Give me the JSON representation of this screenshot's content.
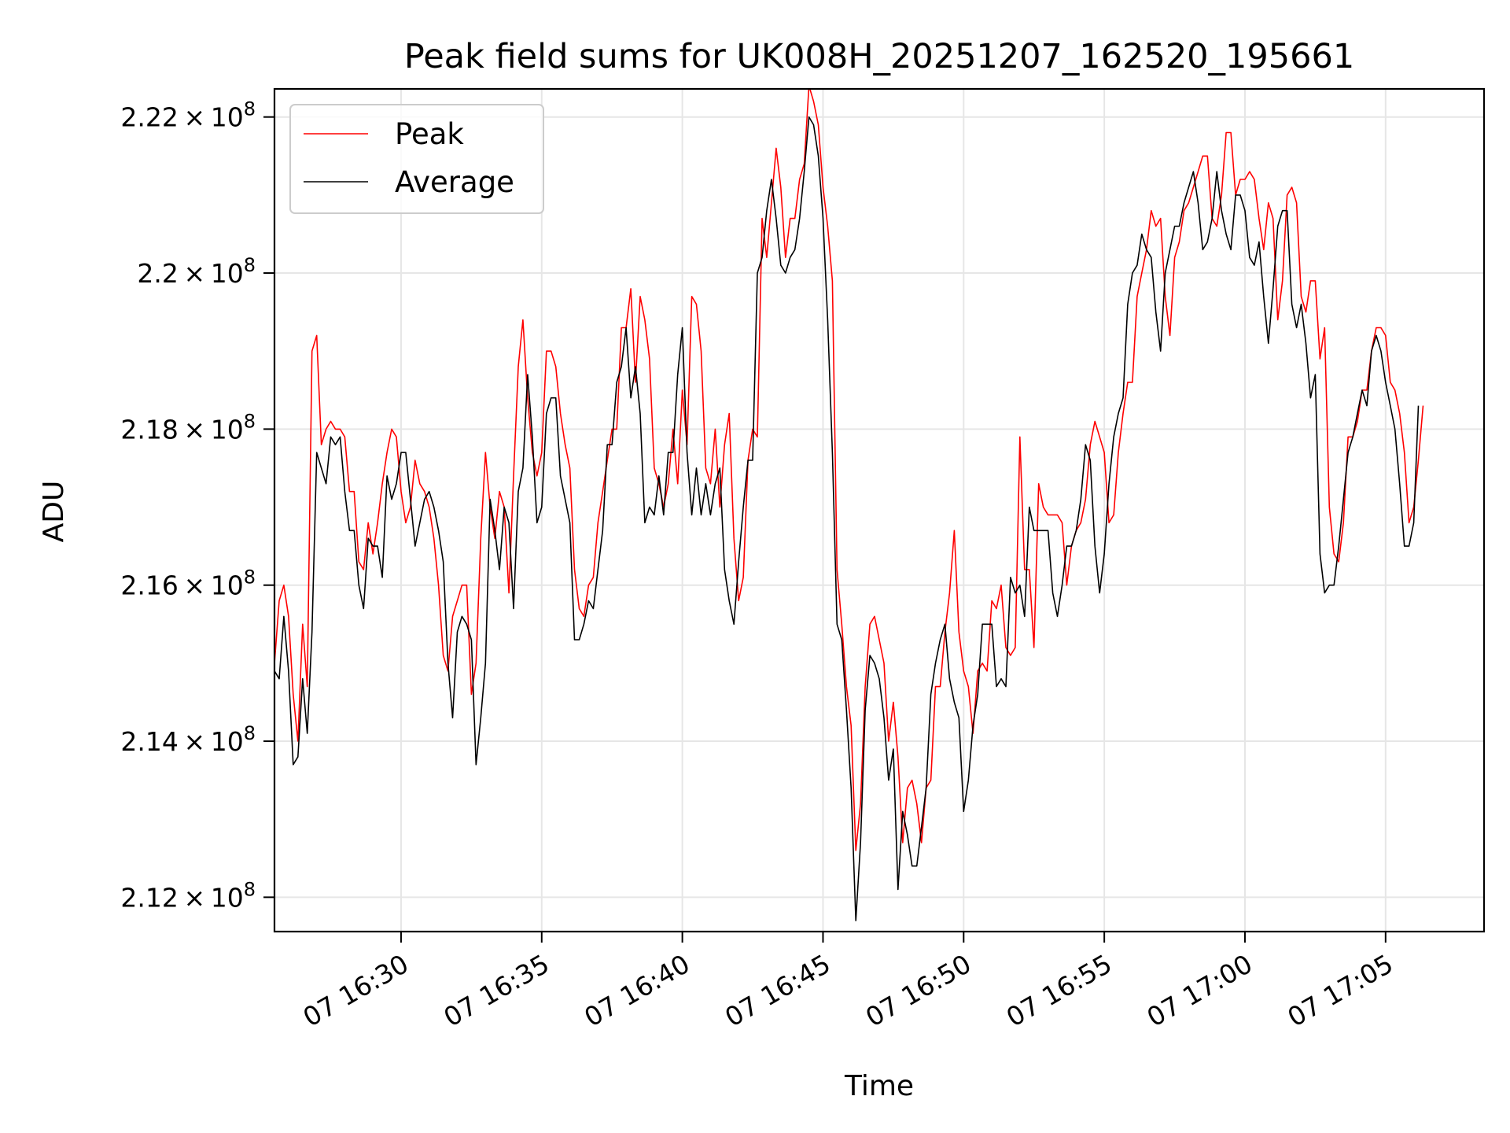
{
  "chart_data": {
    "type": "line",
    "title": "Peak field sums for UK008H_20251207_162520_195661",
    "xlabel": "Time",
    "ylabel": "ADU",
    "grid": true,
    "legend_position": "top-left",
    "x_start": "2025-12-07T16:25:30",
    "x_end": "2025-12-07T17:08:30",
    "x_sample_interval_seconds": 10,
    "xlim": [
      "2025-12-07T16:25:30",
      "2025-12-07T17:08:30"
    ],
    "ylim": [
      211560000,
      222360000
    ],
    "x_ticks": [
      {
        "value": "2025-12-07T16:30:00",
        "label": "07 16:30"
      },
      {
        "value": "2025-12-07T16:35:00",
        "label": "07 16:35"
      },
      {
        "value": "2025-12-07T16:40:00",
        "label": "07 16:40"
      },
      {
        "value": "2025-12-07T16:45:00",
        "label": "07 16:45"
      },
      {
        "value": "2025-12-07T16:50:00",
        "label": "07 16:50"
      },
      {
        "value": "2025-12-07T16:55:00",
        "label": "07 16:55"
      },
      {
        "value": "2025-12-07T17:00:00",
        "label": "07 17:00"
      },
      {
        "value": "2025-12-07T17:05:00",
        "label": "07 17:05"
      }
    ],
    "y_ticks": [
      {
        "value": 212000000,
        "mantissa": "2.12",
        "exponent": "8"
      },
      {
        "value": 214000000,
        "mantissa": "2.14",
        "exponent": "8"
      },
      {
        "value": 216000000,
        "mantissa": "2.16",
        "exponent": "8"
      },
      {
        "value": 218000000,
        "mantissa": "2.18",
        "exponent": "8"
      },
      {
        "value": 220000000,
        "mantissa": "2.2",
        "exponent": "8"
      },
      {
        "value": 222000000,
        "mantissa": "2.22",
        "exponent": "8"
      }
    ],
    "series": [
      {
        "name": "Peak",
        "color": "#ff0000",
        "values": [
          215000000,
          215800000,
          216000000,
          215600000,
          214600000,
          214000000,
          215500000,
          214700000,
          219000000,
          219200000,
          217800000,
          218000000,
          218100000,
          218000000,
          218000000,
          217900000,
          217200000,
          217200000,
          216300000,
          216200000,
          216800000,
          216400000,
          216800000,
          217300000,
          217700000,
          218000000,
          217900000,
          217200000,
          216800000,
          217000000,
          217600000,
          217300000,
          217200000,
          217000000,
          216600000,
          216000000,
          215100000,
          214900000,
          215600000,
          215800000,
          216000000,
          216000000,
          214600000,
          215000000,
          216600000,
          217700000,
          217000000,
          216600000,
          217200000,
          217000000,
          215900000,
          217400000,
          218800000,
          219400000,
          218400000,
          217700000,
          217400000,
          217700000,
          219000000,
          219000000,
          218800000,
          218200000,
          217800000,
          217500000,
          216200000,
          215700000,
          215600000,
          216000000,
          216100000,
          216800000,
          217200000,
          217600000,
          218000000,
          218000000,
          219300000,
          219300000,
          219800000,
          218600000,
          219700000,
          219400000,
          218900000,
          217500000,
          217300000,
          217000000,
          217300000,
          218000000,
          217300000,
          218500000,
          217800000,
          219700000,
          219600000,
          219000000,
          217500000,
          217300000,
          218000000,
          217000000,
          217800000,
          218200000,
          216600000,
          215800000,
          216100000,
          217600000,
          218000000,
          217900000,
          220700000,
          220200000,
          220900000,
          221600000,
          221100000,
          220200000,
          220700000,
          220700000,
          221200000,
          221400000,
          222400000,
          222200000,
          221900000,
          221100000,
          220600000,
          219900000,
          216200000,
          215500000,
          214700000,
          214200000,
          212600000,
          213200000,
          214700000,
          215500000,
          215600000,
          215300000,
          215000000,
          214000000,
          214500000,
          213800000,
          212700000,
          213400000,
          213500000,
          213200000,
          212700000,
          213400000,
          213500000,
          214700000,
          214700000,
          215400000,
          215900000,
          216700000,
          215400000,
          214900000,
          214700000,
          214100000,
          214900000,
          215000000,
          214900000,
          215800000,
          215700000,
          216000000,
          215200000,
          215100000,
          215200000,
          217900000,
          216200000,
          216200000,
          215200000,
          217300000,
          217000000,
          216900000,
          216900000,
          216900000,
          216800000,
          216000000,
          216500000,
          216700000,
          216800000,
          217100000,
          217800000,
          218100000,
          217900000,
          217700000,
          216800000,
          216900000,
          217700000,
          218200000,
          218600000,
          218600000,
          219700000,
          220000000,
          220300000,
          220800000,
          220600000,
          220700000,
          219700000,
          219200000,
          220200000,
          220400000,
          220800000,
          220900000,
          221100000,
          221300000,
          221500000,
          221500000,
          220700000,
          220600000,
          221000000,
          221800000,
          221800000,
          221000000,
          221200000,
          221200000,
          221300000,
          221200000,
          220700000,
          220300000,
          220900000,
          220700000,
          219400000,
          219900000,
          221000000,
          221100000,
          220900000,
          219700000,
          219500000,
          219900000,
          219900000,
          218900000,
          219300000,
          217000000,
          216400000,
          216300000,
          216800000,
          217900000,
          217900000,
          218100000,
          218500000,
          218500000,
          219000000,
          219300000,
          219300000,
          219200000,
          218600000,
          218500000,
          218200000,
          217700000,
          216800000,
          217000000,
          217600000,
          218300000
        ]
      },
      {
        "name": "Average",
        "color": "#000000",
        "values": [
          214900000,
          214800000,
          215600000,
          214900000,
          213700000,
          213800000,
          214800000,
          214100000,
          215400000,
          217700000,
          217500000,
          217300000,
          217900000,
          217800000,
          217900000,
          217200000,
          216700000,
          216700000,
          216000000,
          215700000,
          216600000,
          216500000,
          216500000,
          216100000,
          217400000,
          217100000,
          217300000,
          217700000,
          217700000,
          217100000,
          216500000,
          216800000,
          217100000,
          217200000,
          217000000,
          216700000,
          216300000,
          215000000,
          214300000,
          215400000,
          215600000,
          215500000,
          215300000,
          213700000,
          214300000,
          215000000,
          217100000,
          216700000,
          216200000,
          217000000,
          216800000,
          215700000,
          217200000,
          217500000,
          218700000,
          217900000,
          216800000,
          217000000,
          218200000,
          218400000,
          218400000,
          217400000,
          217100000,
          216800000,
          215300000,
          215300000,
          215500000,
          215800000,
          215700000,
          216200000,
          216700000,
          217800000,
          217800000,
          218600000,
          218800000,
          219300000,
          218400000,
          218800000,
          218200000,
          216800000,
          217000000,
          216900000,
          217400000,
          216900000,
          217700000,
          217700000,
          218700000,
          219300000,
          217700000,
          216900000,
          217500000,
          216900000,
          217300000,
          216900000,
          217300000,
          217500000,
          216200000,
          215800000,
          215500000,
          216300000,
          217000000,
          217600000,
          217600000,
          220000000,
          220200000,
          220800000,
          221200000,
          220700000,
          220100000,
          220000000,
          220200000,
          220300000,
          220700000,
          221300000,
          222000000,
          221900000,
          221500000,
          220700000,
          219400000,
          217700000,
          215500000,
          215300000,
          214400000,
          213400000,
          211700000,
          212700000,
          214400000,
          215100000,
          215000000,
          214800000,
          214300000,
          213500000,
          213900000,
          212100000,
          213100000,
          212800000,
          212400000,
          212400000,
          212900000,
          213400000,
          214600000,
          215000000,
          215300000,
          215500000,
          214800000,
          214500000,
          214300000,
          213100000,
          213500000,
          214200000,
          214600000,
          215500000,
          215500000,
          215500000,
          214700000,
          214800000,
          214700000,
          216100000,
          215900000,
          216000000,
          215600000,
          217000000,
          216700000,
          216700000,
          216700000,
          216700000,
          215900000,
          215600000,
          216000000,
          216500000,
          216500000,
          216700000,
          217100000,
          217800000,
          217600000,
          216500000,
          215900000,
          216400000,
          217300000,
          217900000,
          218200000,
          218400000,
          219600000,
          220000000,
          220100000,
          220500000,
          220300000,
          220200000,
          219500000,
          219000000,
          220000000,
          220300000,
          220600000,
          220600000,
          220900000,
          221100000,
          221300000,
          220900000,
          220300000,
          220400000,
          220700000,
          221300000,
          220800000,
          220500000,
          220300000,
          221000000,
          221000000,
          220800000,
          220200000,
          220100000,
          220400000,
          219700000,
          219100000,
          219800000,
          220600000,
          220800000,
          220800000,
          219600000,
          219300000,
          219600000,
          219100000,
          218400000,
          218700000,
          216400000,
          215900000,
          216000000,
          216000000,
          216500000,
          217100000,
          217700000,
          217900000,
          218200000,
          218500000,
          218300000,
          219000000,
          219200000,
          219000000,
          218600000,
          218300000,
          218000000,
          217300000,
          216500000,
          216500000,
          216800000,
          218300000
        ]
      }
    ]
  }
}
